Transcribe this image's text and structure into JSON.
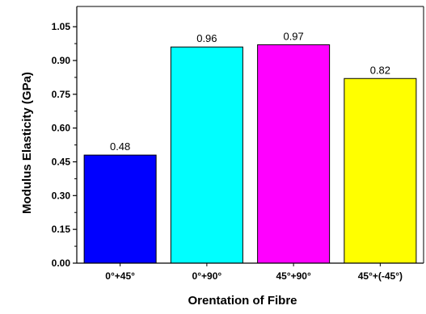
{
  "chart_data": {
    "type": "bar",
    "title": "",
    "xlabel": "Orentation of Fibre",
    "ylabel": "Modulus Elasticity (GPa)",
    "categories": [
      "0°+45°",
      "0°+90°",
      "45°+90°",
      "45°+(-45°)"
    ],
    "values": [
      0.48,
      0.96,
      0.97,
      0.82
    ],
    "value_labels": [
      "0.48",
      "0.96",
      "0.97",
      "0.82"
    ],
    "colors": [
      "#0000ff",
      "#00ffff",
      "#ff00ff",
      "#ffff00"
    ],
    "ylim": [
      0,
      1.14
    ],
    "yticks": [
      0.0,
      0.15,
      0.3,
      0.45,
      0.6,
      0.75,
      0.9,
      1.05
    ],
    "ytick_labels": [
      "0.00",
      "0.15",
      "0.30",
      "0.45",
      "0.60",
      "0.75",
      "0.90",
      "1.05"
    ],
    "grid": false,
    "legend": "none"
  }
}
